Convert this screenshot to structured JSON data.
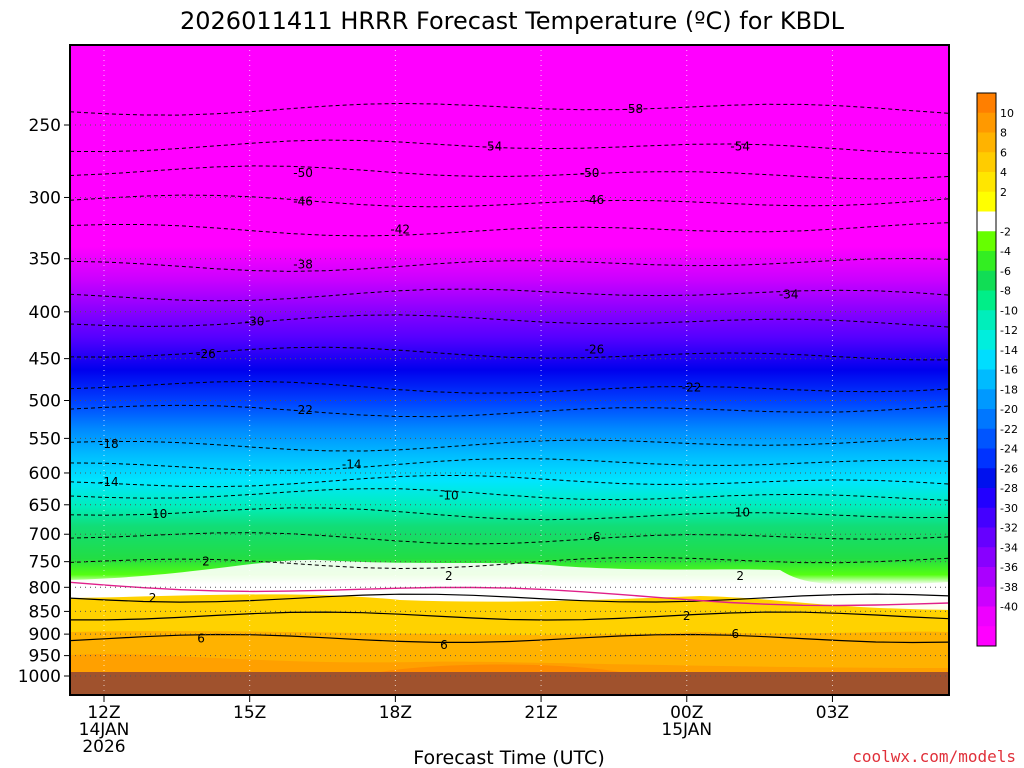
{
  "chart_data": {
    "type": "heatmap",
    "title": "2026011411 HRRR Forecast Temperature (ºC) for KBDL",
    "xlabel": "Forecast Time (UTC)",
    "ylabel": "",
    "x_range_hours": [
      -0.7,
      17.4
    ],
    "x_ticks": [
      {
        "hour": 0,
        "lines": [
          "12Z",
          "14JAN",
          "2026"
        ]
      },
      {
        "hour": 3,
        "lines": [
          "15Z"
        ]
      },
      {
        "hour": 6,
        "lines": [
          "18Z"
        ]
      },
      {
        "hour": 9,
        "lines": [
          "21Z"
        ]
      },
      {
        "hour": 12,
        "lines": [
          "00Z",
          "15JAN"
        ]
      },
      {
        "hour": 15,
        "lines": [
          "03Z"
        ]
      }
    ],
    "y_axis": "pressure (hPa), log scale",
    "ylim": [
      1010,
      200
    ],
    "y_ticks": [
      250,
      300,
      350,
      400,
      450,
      500,
      550,
      600,
      650,
      700,
      750,
      800,
      850,
      900,
      950,
      1000
    ],
    "surface_pressure": 990,
    "colorbar": {
      "ticks": [
        10,
        8,
        6,
        4,
        2,
        -2,
        -4,
        -6,
        -8,
        -10,
        -12,
        -14,
        -16,
        -18,
        -20,
        -22,
        -24,
        -26,
        -28,
        -30,
        -32,
        -34,
        -36,
        -38,
        -40
      ],
      "colors": [
        "#ff7f00",
        "#ff9900",
        "#ffb300",
        "#ffcc00",
        "#ffe600",
        "#ffff00",
        "#ffffff",
        "#66ff00",
        "#33ee22",
        "#11dd55",
        "#00ee88",
        "#00eebb",
        "#00eedd",
        "#00ddff",
        "#00bbff",
        "#0099ff",
        "#0077ff",
        "#0055ff",
        "#0033ff",
        "#0011ee",
        "#2200ff",
        "#4400ff",
        "#6600ff",
        "#8800ff",
        "#aa00ff",
        "#cc00ff",
        "#ee00ff",
        "#ff00ff"
      ]
    },
    "contour_labels": [
      {
        "text": "-58",
        "hour": 10.9,
        "p": 240
      },
      {
        "text": "-54",
        "hour": 8.0,
        "p": 264
      },
      {
        "text": "-54",
        "hour": 13.1,
        "p": 264
      },
      {
        "text": "-50",
        "hour": 4.1,
        "p": 282
      },
      {
        "text": "-50",
        "hour": 10.0,
        "p": 282
      },
      {
        "text": "-46",
        "hour": 4.1,
        "p": 303
      },
      {
        "text": "-46",
        "hour": 10.1,
        "p": 302
      },
      {
        "text": "-42",
        "hour": 6.1,
        "p": 325
      },
      {
        "text": "-38",
        "hour": 4.1,
        "p": 355
      },
      {
        "text": "-34",
        "hour": 14.1,
        "p": 383
      },
      {
        "text": "-30",
        "hour": 3.1,
        "p": 410
      },
      {
        "text": "-26",
        "hour": 2.1,
        "p": 445
      },
      {
        "text": "-26",
        "hour": 10.1,
        "p": 440
      },
      {
        "text": "-22",
        "hour": 12.1,
        "p": 484
      },
      {
        "text": "-22",
        "hour": 4.1,
        "p": 512
      },
      {
        "text": "-18",
        "hour": 0.1,
        "p": 558
      },
      {
        "text": "-14",
        "hour": 5.1,
        "p": 587
      },
      {
        "text": "-14",
        "hour": 0.1,
        "p": 614
      },
      {
        "text": "-10",
        "hour": 7.1,
        "p": 635
      },
      {
        "text": "-10",
        "hour": 1.1,
        "p": 665
      },
      {
        "text": "-10",
        "hour": 13.1,
        "p": 663
      },
      {
        "text": "-6",
        "hour": 10.1,
        "p": 705
      },
      {
        "text": "2",
        "hour": 2.1,
        "p": 750
      },
      {
        "text": "2",
        "hour": 7.1,
        "p": 778
      },
      {
        "text": "2",
        "hour": 13.1,
        "p": 778
      },
      {
        "text": "2",
        "hour": 1.0,
        "p": 822
      },
      {
        "text": "2",
        "hour": 12.0,
        "p": 860
      },
      {
        "text": "6",
        "hour": 2.0,
        "p": 910
      },
      {
        "text": "6",
        "hour": 7.0,
        "p": 925
      },
      {
        "text": "6",
        "hour": 13.0,
        "p": 900
      }
    ]
  },
  "credit": "coolwx.com/models"
}
